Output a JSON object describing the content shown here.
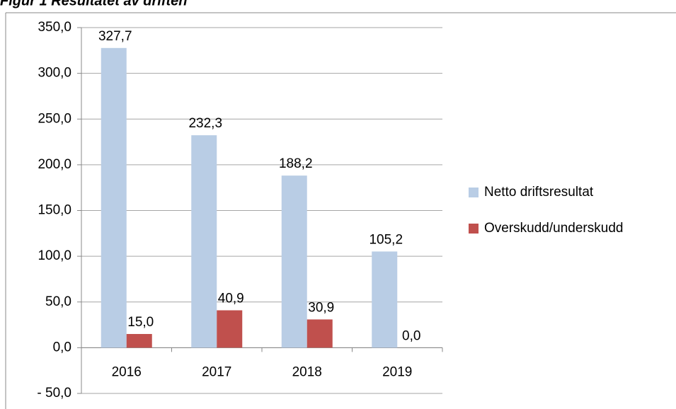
{
  "chart_data": {
    "type": "bar",
    "title": "Figur 1 Resultatet av driften",
    "categories": [
      "2016",
      "2017",
      "2018",
      "2019"
    ],
    "series": [
      {
        "name": "Netto driftsresultat",
        "color": "#b9cde5",
        "values": [
          327.7,
          232.3,
          188.2,
          105.2
        ],
        "value_labels": [
          "327,7",
          "232,3",
          "188,2",
          "105,2"
        ]
      },
      {
        "name": "Overskudd/underskudd",
        "color": "#c0504d",
        "values": [
          15.0,
          40.9,
          30.9,
          0.0
        ],
        "value_labels": [
          "15,0",
          "40,9",
          "30,9",
          "0,0"
        ]
      }
    ],
    "ylim": [
      -50,
      350
    ],
    "yticks": [
      {
        "value": -50,
        "label": "- 50,0"
      },
      {
        "value": 0,
        "label": "0,0"
      },
      {
        "value": 50,
        "label": "50,0"
      },
      {
        "value": 100,
        "label": "100,0"
      },
      {
        "value": 150,
        "label": "150,0"
      },
      {
        "value": 200,
        "label": "200,0"
      },
      {
        "value": 250,
        "label": "250,0"
      },
      {
        "value": 300,
        "label": "300,0"
      },
      {
        "value": 350,
        "label": "350,0"
      }
    ],
    "grid": true,
    "legend": "right"
  }
}
